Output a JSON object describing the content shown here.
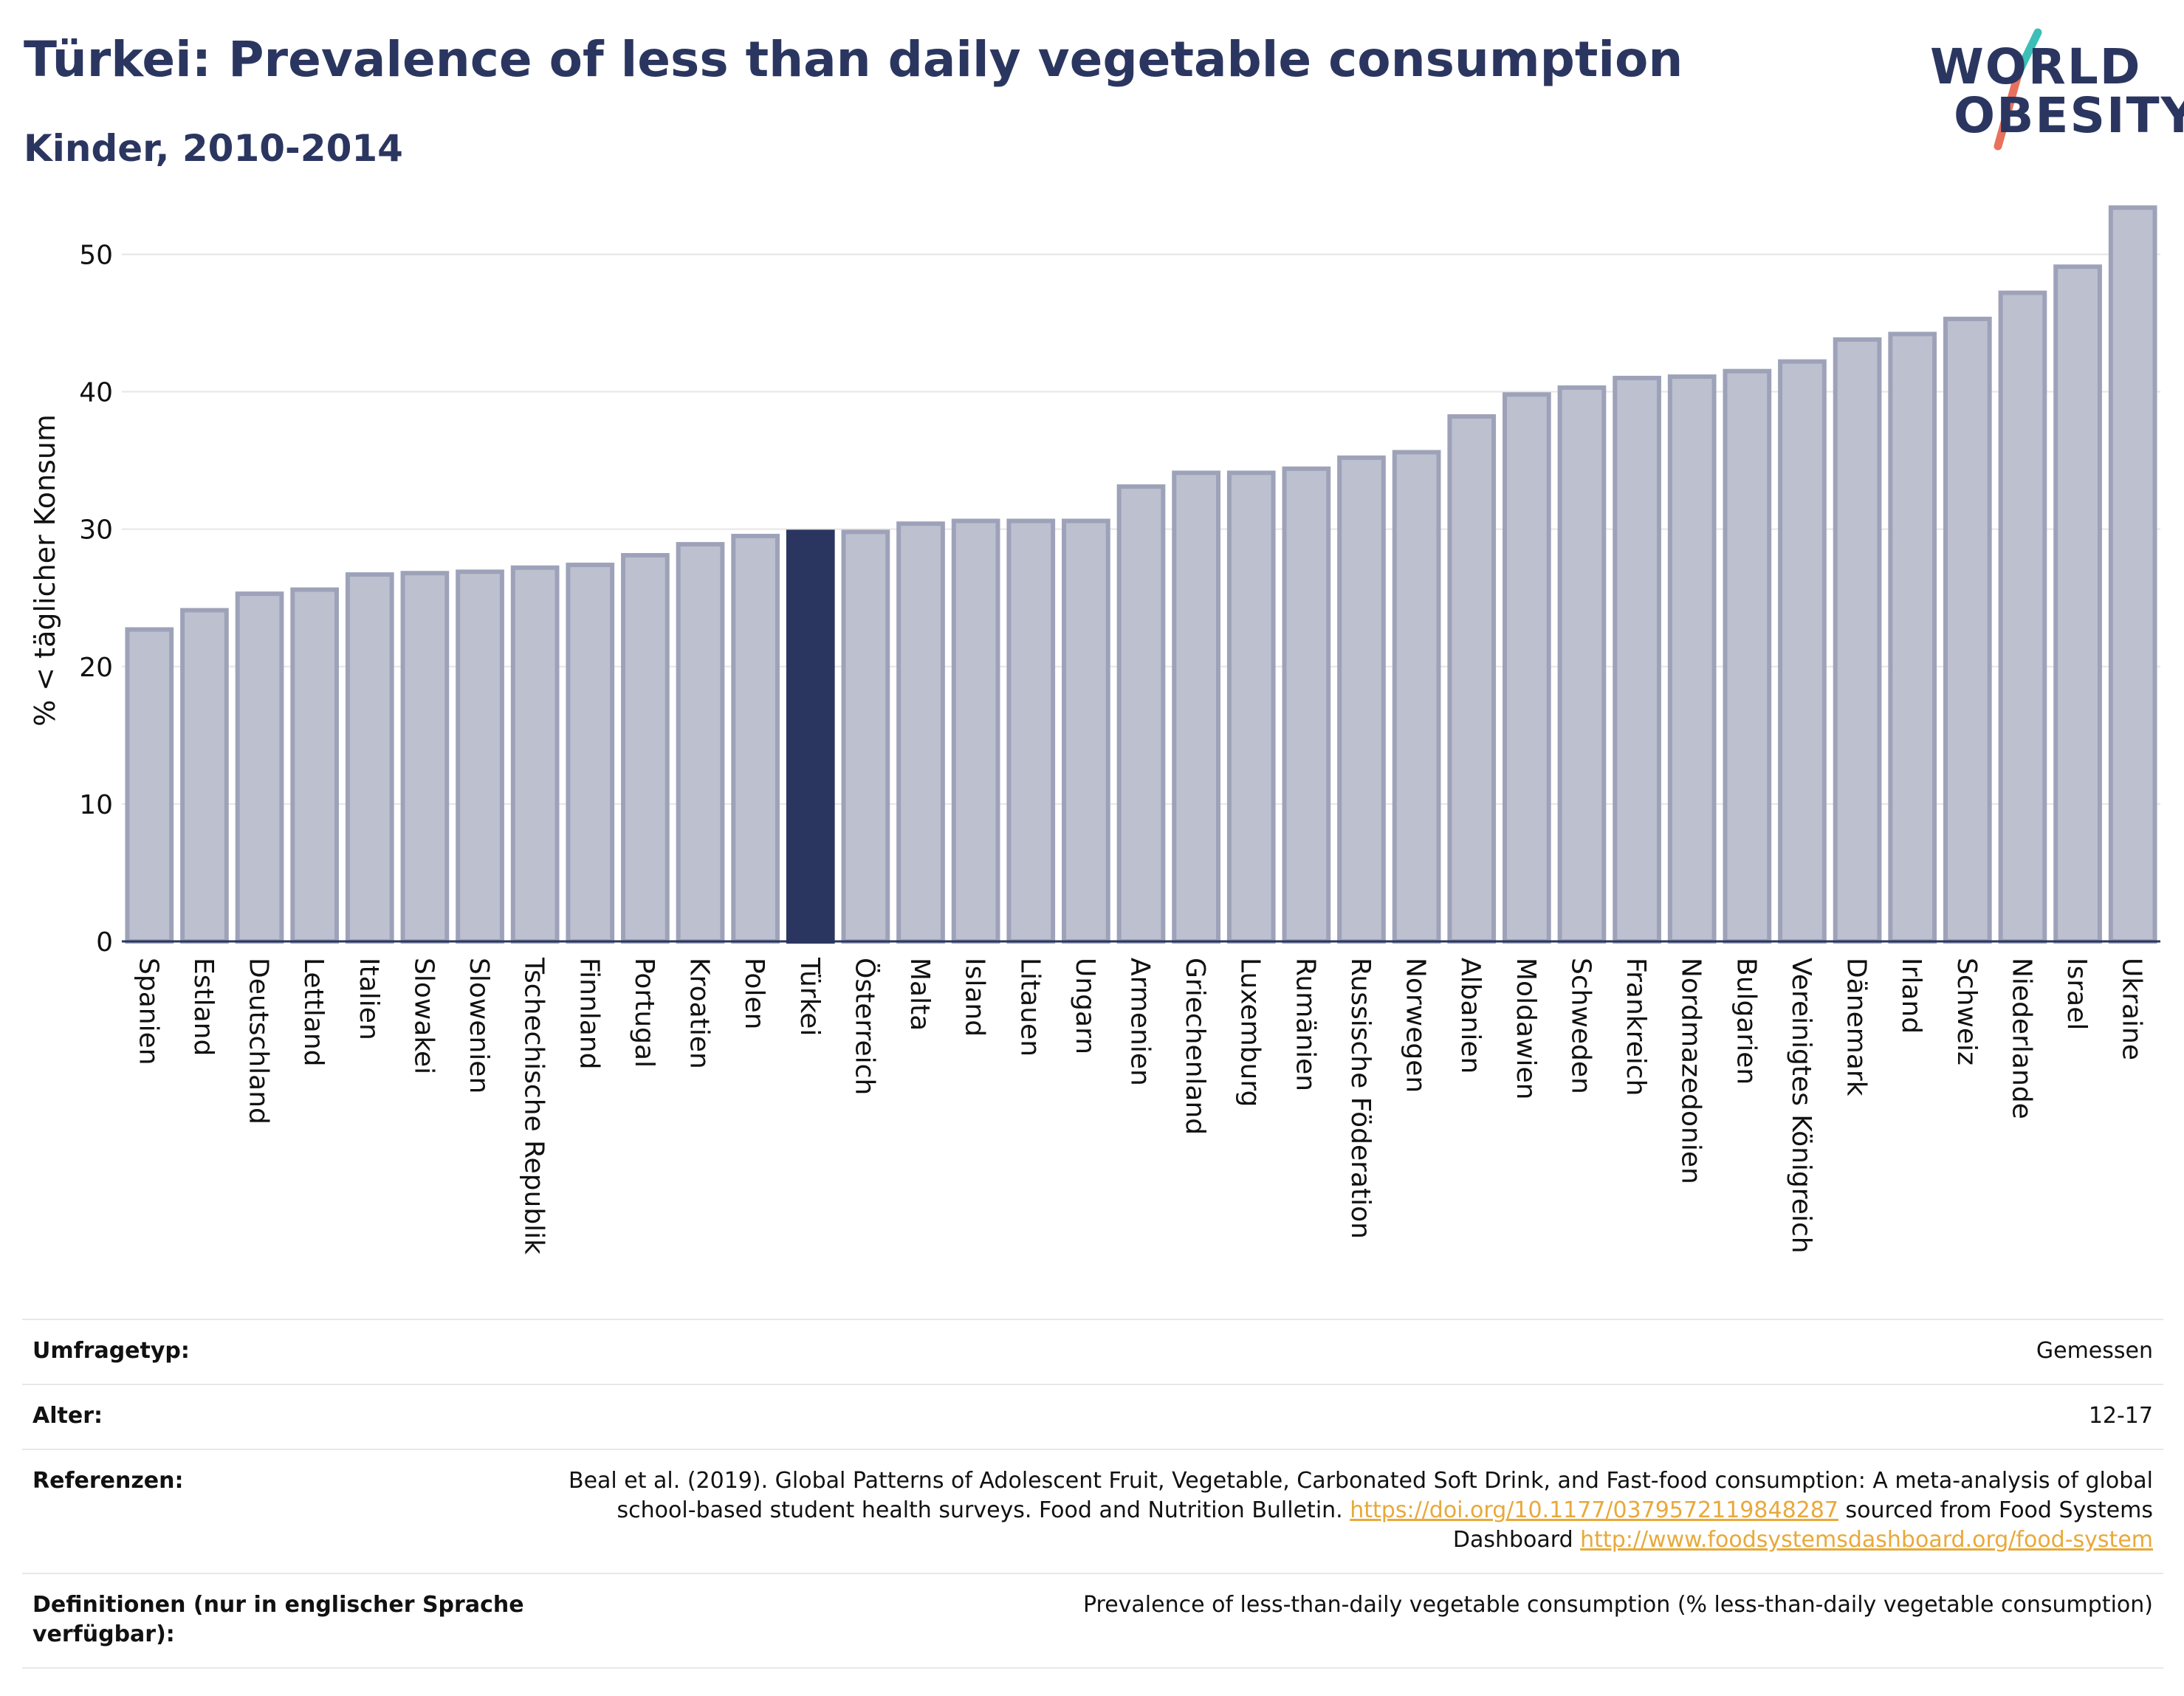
{
  "header": {
    "title": "Türkei: Prevalence of less than daily vegetable consumption",
    "subtitle": "Kinder, 2010-2014"
  },
  "logo": {
    "line1": "WORLD",
    "line2": "OBESITY",
    "icon": "world-obesity-slash-logo",
    "colors": {
      "text": "#2b3660",
      "slash_top": "#3bbfb7",
      "slash_bottom": "#e8715e"
    }
  },
  "chart_data": {
    "type": "bar",
    "title": "",
    "xlabel": "",
    "ylabel": "% < täglicher Konsum",
    "ylim": [
      0,
      54
    ],
    "yticks": [
      0,
      10,
      20,
      30,
      40,
      50
    ],
    "grid": true,
    "highlight": "Türkei",
    "colors": {
      "bar": "#bdc0cf",
      "bar_border": "#9ea2b9",
      "highlight": "#2b3660"
    },
    "categories": [
      "Spanien",
      "Estland",
      "Deutschland",
      "Lettland",
      "Italien",
      "Slowakei",
      "Slowenien",
      "Tschechische Republik",
      "Finnland",
      "Portugal",
      "Kroatien",
      "Polen",
      "Türkei",
      "Österreich",
      "Malta",
      "Island",
      "Litauen",
      "Ungarn",
      "Armenien",
      "Griechenland",
      "Luxemburg",
      "Rumänien",
      "Russische Föderation",
      "Norwegen",
      "Albanien",
      "Moldawien",
      "Schweden",
      "Frankreich",
      "Nordmazedonien",
      "Bulgarien",
      "Vereinigtes Königreich",
      "Dänemark",
      "Irland",
      "Schweiz",
      "Niederlande",
      "Israel",
      "Ukraine"
    ],
    "values": [
      22.7,
      24.1,
      25.3,
      25.6,
      26.7,
      26.8,
      26.9,
      27.2,
      27.4,
      28.1,
      28.9,
      29.5,
      29.8,
      29.8,
      30.4,
      30.6,
      30.6,
      30.6,
      33.1,
      34.1,
      34.1,
      34.4,
      35.2,
      35.6,
      38.2,
      39.8,
      40.3,
      41.0,
      41.1,
      41.5,
      42.2,
      43.8,
      44.2,
      45.3,
      47.2,
      49.1,
      53.4
    ]
  },
  "info": {
    "survey_label": "Umfragetyp:",
    "survey_value": "Gemessen",
    "age_label": "Alter:",
    "age_value": "12-17",
    "ref_label": "Referenzen:",
    "ref_text1": "Beal et al. (2019). Global Patterns of Adolescent Fruit, Vegetable, Carbonated Soft Drink, and Fast-food consumption: A meta-analysis of global school-based student health surveys. Food and Nutrition Bulletin. ",
    "ref_link1": "https://doi.org/10.1177/0379572119848287",
    "ref_text2": " sourced from Food Systems Dashboard ",
    "ref_link2": "http://www.foodsystemsdashboard.org/food-system",
    "def_label": "Definitionen (nur in englischer Sprache verfügbar):",
    "def_value": "Prevalence of less-than-daily vegetable consumption (% less-than-daily vegetable consumption)"
  }
}
